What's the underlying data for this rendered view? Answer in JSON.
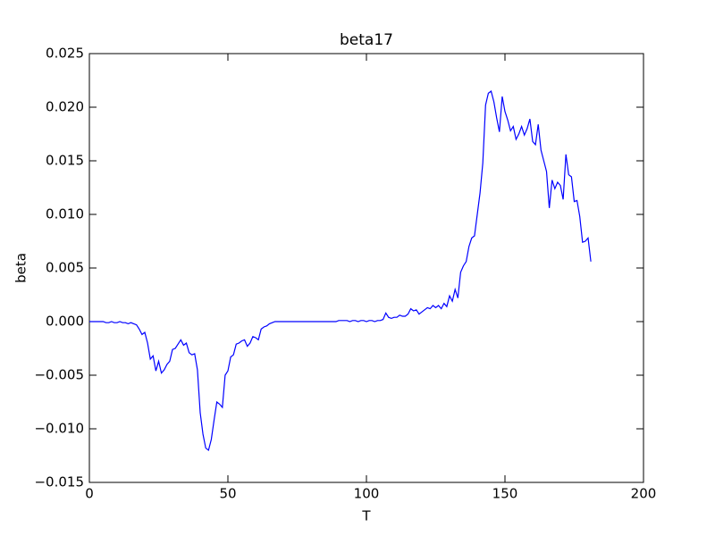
{
  "chart_data": {
    "type": "line",
    "title": "beta17",
    "xlabel": "T",
    "ylabel": "beta",
    "color": "#0000ff",
    "x": [
      0,
      1,
      2,
      3,
      4,
      5,
      6,
      7,
      8,
      9,
      10,
      11,
      12,
      13,
      14,
      15,
      16,
      17,
      18,
      19,
      20,
      21,
      22,
      23,
      24,
      25,
      26,
      27,
      28,
      29,
      30,
      31,
      32,
      33,
      34,
      35,
      36,
      37,
      38,
      39,
      40,
      41,
      42,
      43,
      44,
      45,
      46,
      47,
      48,
      49,
      50,
      51,
      52,
      53,
      54,
      55,
      56,
      57,
      58,
      59,
      60,
      61,
      62,
      63,
      64,
      65,
      66,
      67,
      68,
      69,
      70,
      71,
      72,
      73,
      74,
      75,
      76,
      77,
      78,
      79,
      80,
      81,
      82,
      83,
      84,
      85,
      86,
      87,
      88,
      89,
      90,
      91,
      92,
      93,
      94,
      95,
      96,
      97,
      98,
      99,
      100,
      101,
      102,
      103,
      104,
      105,
      106,
      107,
      108,
      109,
      110,
      111,
      112,
      113,
      114,
      115,
      116,
      117,
      118,
      119,
      120,
      121,
      122,
      123,
      124,
      125,
      126,
      127,
      128,
      129,
      130,
      131,
      132,
      133,
      134,
      135,
      136,
      137,
      138,
      139,
      140,
      141,
      142,
      143,
      144,
      145,
      146,
      147,
      148,
      149,
      150,
      151,
      152,
      153,
      154,
      155,
      156,
      157,
      158,
      159,
      160,
      161,
      162,
      163,
      164,
      165,
      166,
      167,
      168,
      169,
      170,
      171,
      172,
      173,
      174,
      175,
      176,
      177,
      178,
      179,
      180,
      181
    ],
    "values": [
      0,
      0,
      0,
      0,
      0,
      0,
      -0.0001,
      -0.0001,
      0,
      -0.0001,
      -0.0001,
      0,
      -0.0001,
      -0.0001,
      -0.0002,
      -0.0001,
      -0.0002,
      -0.0003,
      -0.0007,
      -0.0012,
      -0.001,
      -0.002,
      -0.0035,
      -0.0032,
      -0.0046,
      -0.0037,
      -0.0048,
      -0.0045,
      -0.004,
      -0.0037,
      -0.0026,
      -0.0025,
      -0.0021,
      -0.0017,
      -0.0022,
      -0.002,
      -0.0029,
      -0.0031,
      -0.003,
      -0.0045,
      -0.0085,
      -0.0105,
      -0.0118,
      -0.012,
      -0.011,
      -0.0092,
      -0.0075,
      -0.0077,
      -0.008,
      -0.005,
      -0.0046,
      -0.0033,
      -0.0031,
      -0.0021,
      -0.002,
      -0.0018,
      -0.0017,
      -0.0023,
      -0.002,
      -0.0014,
      -0.0015,
      -0.0017,
      -0.0007,
      -0.0005,
      -0.0004,
      -0.0002,
      -0.0001,
      0,
      0,
      0,
      0,
      0,
      0,
      0,
      0,
      0,
      0,
      0,
      0,
      0,
      0,
      0,
      0,
      0,
      0,
      0,
      0,
      0,
      0,
      0,
      0.0001,
      0.0001,
      0.0001,
      0.0001,
      0,
      0.0001,
      0.0001,
      0,
      0.0001,
      0.0001,
      0,
      0.0001,
      0.0001,
      0,
      0.0001,
      0.0001,
      0.0002,
      0.0008,
      0.0004,
      0.0003,
      0.0004,
      0.0004,
      0.0006,
      0.0005,
      0.0005,
      0.0007,
      0.0012,
      0.001,
      0.0011,
      0.0007,
      0.0009,
      0.0011,
      0.0013,
      0.0012,
      0.0015,
      0.0013,
      0.0015,
      0.0012,
      0.0017,
      0.0014,
      0.0024,
      0.0019,
      0.003,
      0.0022,
      0.0046,
      0.0052,
      0.0056,
      0.007,
      0.0078,
      0.008,
      0.01,
      0.012,
      0.0148,
      0.0202,
      0.0213,
      0.0215,
      0.0205,
      0.019,
      0.0177,
      0.021,
      0.0196,
      0.0188,
      0.0178,
      0.0182,
      0.017,
      0.0175,
      0.0182,
      0.0174,
      0.018,
      0.0189,
      0.0168,
      0.0165,
      0.0184,
      0.016,
      0.015,
      0.014,
      0.0106,
      0.0132,
      0.0124,
      0.013,
      0.0127,
      0.0114,
      0.0156,
      0.0137,
      0.0135,
      0.0112,
      0.0113,
      0.0098,
      0.0074,
      0.0075,
      0.0078,
      0.0056
    ],
    "xlim": [
      0,
      200
    ],
    "xticks": [
      0,
      50,
      100,
      150,
      200
    ],
    "ylim": [
      -0.015,
      0.025
    ],
    "yticks": [
      {
        "value": -0.015,
        "label": "−0.015"
      },
      {
        "value": -0.01,
        "label": "−0.010"
      },
      {
        "value": -0.005,
        "label": "−0.005"
      },
      {
        "value": 0,
        "label": "0.000"
      },
      0.005,
      {
        "value": 0.01,
        "label": "0.010"
      },
      0.015,
      {
        "value": 0.02,
        "label": "0.020"
      },
      0.025
    ]
  }
}
